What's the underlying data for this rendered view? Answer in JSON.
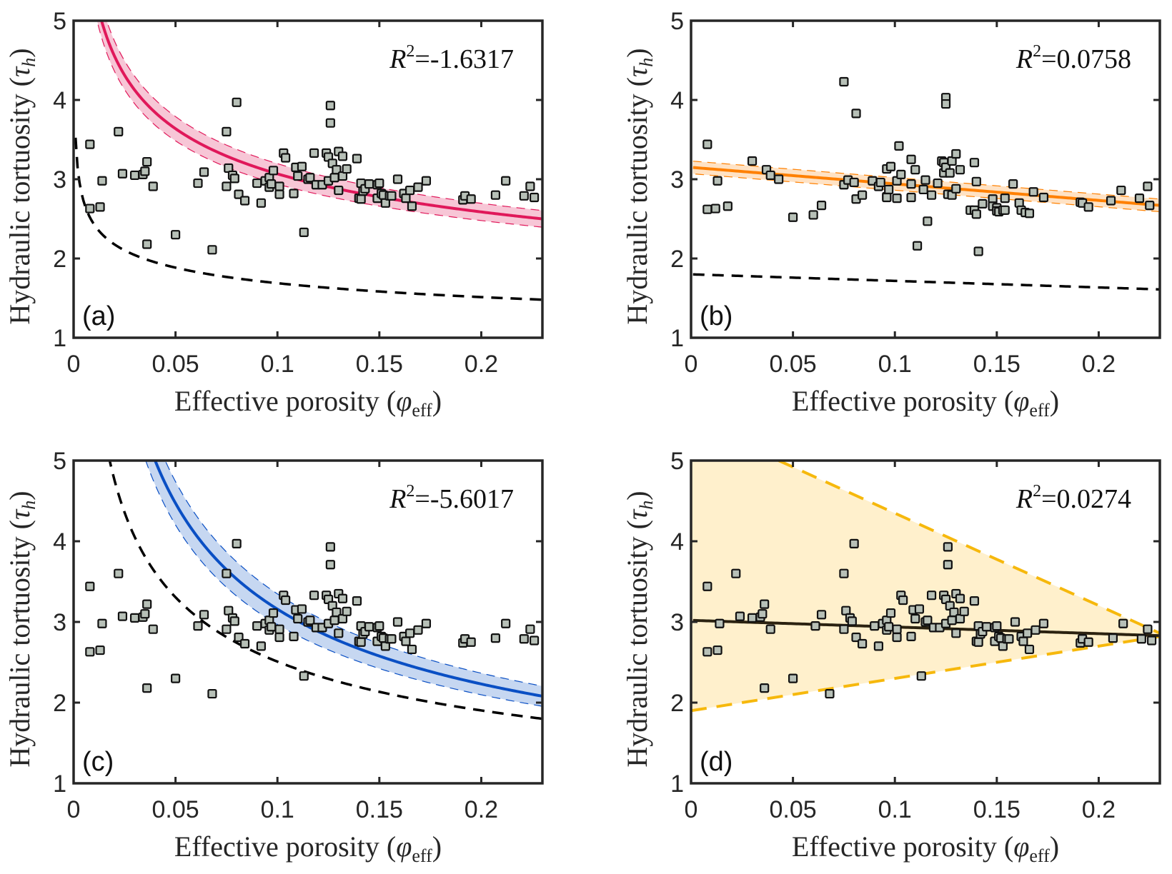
{
  "chart_data": [
    {
      "type": "scatter",
      "panel_tag": "(a)",
      "title": "",
      "annotation": "R²=-1.6317",
      "annotation_parts": {
        "symbol": "R",
        "sup": "2",
        "value": "=-1.6317"
      },
      "xlabel": "Effective porosity (φ_eff)",
      "xlabel_parts": {
        "main": "Effective porosity",
        "symbol": "φ",
        "sub": "eff"
      },
      "ylabel": "Hydraulic tortuosity (τ_h)",
      "ylabel_parts": {
        "main": "Hydraulic tortuosity",
        "symbol": "τ",
        "sub": "h"
      },
      "xlim": [
        0,
        0.23
      ],
      "ylim": [
        1,
        5
      ],
      "xticks": [
        0,
        0.05,
        0.1,
        0.15,
        0.2
      ],
      "xtick_labels": [
        "0",
        "0.05",
        "0.1",
        "0.15",
        "0.2"
      ],
      "yticks": [
        1,
        2,
        3,
        4,
        5
      ],
      "ytick_labels": [
        "1",
        "2",
        "3",
        "4",
        "5"
      ],
      "grid": false,
      "points_ref": "dataset_acd",
      "fit": {
        "kind": "power",
        "x0": 0.0137,
        "y0": 5,
        "x1": 0.23,
        "y1": 2.5,
        "color": "#e0185a",
        "band": 0.07,
        "band_color": "#f7c6d6"
      },
      "reference": {
        "kind": "power",
        "x0": 0.001,
        "y0": 3.5,
        "x1": 0.23,
        "y1": 1.48,
        "color": "#000000",
        "dashed": true
      }
    },
    {
      "type": "scatter",
      "panel_tag": "(b)",
      "annotation": "R²=0.0758",
      "annotation_parts": {
        "symbol": "R",
        "sup": "2",
        "value": "=0.0758"
      },
      "xlabel_parts": {
        "main": "Effective porosity",
        "symbol": "φ",
        "sub": "eff"
      },
      "ylabel_parts": {
        "main": "Hydraulic tortuosity",
        "symbol": "τ",
        "sub": "h"
      },
      "xlim": [
        0,
        0.23
      ],
      "ylim": [
        1,
        5
      ],
      "xticks": [
        0,
        0.05,
        0.1,
        0.15,
        0.2
      ],
      "xtick_labels": [
        "0",
        "0.05",
        "0.1",
        "0.15",
        "0.2"
      ],
      "yticks": [
        1,
        2,
        3,
        4,
        5
      ],
      "ytick_labels": [
        "1",
        "2",
        "3",
        "4",
        "5"
      ],
      "grid": false,
      "points_ref": "dataset_b",
      "fit": {
        "kind": "linear",
        "x0": 0,
        "y0": 3.15,
        "x1": 0.23,
        "y1": 2.67,
        "color": "#ff8000",
        "band": 0.08,
        "band_color": "#ffe2c4"
      },
      "reference": {
        "kind": "linear",
        "x0": 0,
        "y0": 1.8,
        "x1": 0.23,
        "y1": 1.61,
        "color": "#000000",
        "dashed": true
      }
    },
    {
      "type": "scatter",
      "panel_tag": "(c)",
      "annotation": "R²=-5.6017",
      "annotation_parts": {
        "symbol": "R",
        "sup": "2",
        "value": "=-5.6017"
      },
      "xlabel_parts": {
        "main": "Effective porosity",
        "symbol": "φ",
        "sub": "eff"
      },
      "ylabel_parts": {
        "main": "Hydraulic tortuosity",
        "symbol": "τ",
        "sub": "h"
      },
      "xlim": [
        0,
        0.23
      ],
      "ylim": [
        1,
        5
      ],
      "xticks": [
        0,
        0.05,
        0.1,
        0.15,
        0.2
      ],
      "xtick_labels": [
        "0",
        "0.05",
        "0.1",
        "0.15",
        "0.2"
      ],
      "yticks": [
        1,
        2,
        3,
        4,
        5
      ],
      "ytick_labels": [
        "1",
        "2",
        "3",
        "4",
        "5"
      ],
      "grid": false,
      "points_ref": "dataset_acd",
      "fit": {
        "kind": "power",
        "x0": 0.04,
        "y0": 5,
        "x1": 0.23,
        "y1": 2.08,
        "color": "#0a4fc4",
        "band": 0.1,
        "band_color": "#c6d7f1"
      },
      "reference": {
        "kind": "power",
        "x0": 0.0177,
        "y0": 5,
        "x1": 0.23,
        "y1": 1.8,
        "color": "#000000",
        "dashed": true
      }
    },
    {
      "type": "scatter",
      "panel_tag": "(d)",
      "annotation": "R²=0.0274",
      "annotation_parts": {
        "symbol": "R",
        "sup": "2",
        "value": "=0.0274"
      },
      "xlabel_parts": {
        "main": "Effective porosity",
        "symbol": "φ",
        "sub": "eff"
      },
      "ylabel_parts": {
        "main": "Hydraulic tortuosity",
        "symbol": "τ",
        "sub": "h"
      },
      "xlim": [
        0,
        0.23
      ],
      "ylim": [
        1,
        5
      ],
      "xticks": [
        0,
        0.05,
        0.1,
        0.15,
        0.2
      ],
      "xtick_labels": [
        "0",
        "0.05",
        "0.1",
        "0.15",
        "0.2"
      ],
      "yticks": [
        1,
        2,
        3,
        4,
        5
      ],
      "ytick_labels": [
        "1",
        "2",
        "3",
        "4",
        "5"
      ],
      "grid": false,
      "points_ref": "dataset_acd",
      "fit": {
        "kind": "linear",
        "x0": 0,
        "y0": 3.02,
        "x1": 0.23,
        "y1": 2.83,
        "color": "#2b2210",
        "band": 0,
        "band_color": null
      },
      "envelope": {
        "upper": [
          [
            0,
            5
          ],
          [
            0.043,
            5
          ],
          [
            0.23,
            2.86
          ]
        ],
        "upper_dashed_from": [
          0.043,
          5
        ],
        "lower": [
          [
            0,
            1.9
          ],
          [
            0.23,
            2.82
          ]
        ],
        "line_color": "#f6b80c",
        "fill_color": "#fff0cc"
      }
    }
  ],
  "datasets": {
    "dataset_acd": [
      [
        0.008,
        3.44
      ],
      [
        0.008,
        2.63
      ],
      [
        0.013,
        2.65
      ],
      [
        0.014,
        2.98
      ],
      [
        0.022,
        3.6
      ],
      [
        0.024,
        3.07
      ],
      [
        0.03,
        3.05
      ],
      [
        0.034,
        3.06
      ],
      [
        0.035,
        3.1
      ],
      [
        0.036,
        3.22
      ],
      [
        0.036,
        2.18
      ],
      [
        0.039,
        2.91
      ],
      [
        0.05,
        2.3
      ],
      [
        0.061,
        2.95
      ],
      [
        0.064,
        3.09
      ],
      [
        0.068,
        2.11
      ],
      [
        0.075,
        2.91
      ],
      [
        0.075,
        3.6
      ],
      [
        0.076,
        3.14
      ],
      [
        0.078,
        3.05
      ],
      [
        0.079,
        3.01
      ],
      [
        0.08,
        3.97
      ],
      [
        0.081,
        2.81
      ],
      [
        0.084,
        2.73
      ],
      [
        0.09,
        2.95
      ],
      [
        0.092,
        2.7
      ],
      [
        0.094,
        2.98
      ],
      [
        0.096,
        3.02
      ],
      [
        0.096,
        2.9
      ],
      [
        0.097,
        2.94
      ],
      [
        0.098,
        3.11
      ],
      [
        0.101,
        2.81
      ],
      [
        0.101,
        2.91
      ],
      [
        0.103,
        3.33
      ],
      [
        0.104,
        3.27
      ],
      [
        0.108,
        2.82
      ],
      [
        0.109,
        3.15
      ],
      [
        0.11,
        3.04
      ],
      [
        0.112,
        3.16
      ],
      [
        0.113,
        2.33
      ],
      [
        0.115,
        3.0
      ],
      [
        0.116,
        3.02
      ],
      [
        0.118,
        3.33
      ],
      [
        0.119,
        2.93
      ],
      [
        0.122,
        2.93
      ],
      [
        0.124,
        3.33
      ],
      [
        0.125,
        2.98
      ],
      [
        0.125,
        3.28
      ],
      [
        0.126,
        3.93
      ],
      [
        0.126,
        3.71
      ],
      [
        0.127,
        3.2
      ],
      [
        0.128,
        3.02
      ],
      [
        0.129,
        3.12
      ],
      [
        0.13,
        3.35
      ],
      [
        0.13,
        2.86
      ],
      [
        0.132,
        3.04
      ],
      [
        0.132,
        3.29
      ],
      [
        0.134,
        3.13
      ],
      [
        0.139,
        3.26
      ],
      [
        0.14,
        2.76
      ],
      [
        0.141,
        2.95
      ],
      [
        0.141,
        2.75
      ],
      [
        0.142,
        2.85
      ],
      [
        0.143,
        2.88
      ],
      [
        0.145,
        2.94
      ],
      [
        0.149,
        2.76
      ],
      [
        0.149,
        2.93
      ],
      [
        0.15,
        2.95
      ],
      [
        0.151,
        2.82
      ],
      [
        0.152,
        2.8
      ],
      [
        0.153,
        2.7
      ],
      [
        0.155,
        2.79
      ],
      [
        0.156,
        2.79
      ],
      [
        0.159,
        3.0
      ],
      [
        0.162,
        2.82
      ],
      [
        0.163,
        2.76
      ],
      [
        0.165,
        2.86
      ],
      [
        0.166,
        2.66
      ],
      [
        0.169,
        2.9
      ],
      [
        0.173,
        2.98
      ],
      [
        0.191,
        2.74
      ],
      [
        0.192,
        2.79
      ],
      [
        0.195,
        2.75
      ],
      [
        0.207,
        2.8
      ],
      [
        0.212,
        2.98
      ],
      [
        0.221,
        2.79
      ],
      [
        0.224,
        2.91
      ],
      [
        0.226,
        2.77
      ]
    ],
    "dataset_b": [
      [
        0.008,
        3.44
      ],
      [
        0.008,
        2.62
      ],
      [
        0.012,
        2.63
      ],
      [
        0.013,
        2.98
      ],
      [
        0.018,
        2.66
      ],
      [
        0.03,
        3.23
      ],
      [
        0.037,
        3.12
      ],
      [
        0.039,
        3.05
      ],
      [
        0.043,
        3.0
      ],
      [
        0.05,
        2.52
      ],
      [
        0.06,
        2.55
      ],
      [
        0.064,
        2.67
      ],
      [
        0.075,
        4.23
      ],
      [
        0.075,
        2.93
      ],
      [
        0.077,
        2.99
      ],
      [
        0.08,
        2.96
      ],
      [
        0.081,
        3.83
      ],
      [
        0.081,
        2.75
      ],
      [
        0.084,
        2.8
      ],
      [
        0.089,
        2.98
      ],
      [
        0.092,
        2.91
      ],
      [
        0.093,
        2.96
      ],
      [
        0.096,
        3.13
      ],
      [
        0.098,
        3.16
      ],
      [
        0.096,
        2.78
      ],
      [
        0.097,
        2.87
      ],
      [
        0.096,
        2.77
      ],
      [
        0.101,
        2.76
      ],
      [
        0.101,
        2.98
      ],
      [
        0.102,
        3.42
      ],
      [
        0.103,
        3.06
      ],
      [
        0.108,
        2.77
      ],
      [
        0.108,
        3.25
      ],
      [
        0.108,
        2.94
      ],
      [
        0.11,
        3.12
      ],
      [
        0.111,
        2.16
      ],
      [
        0.114,
        2.87
      ],
      [
        0.115,
        2.99
      ],
      [
        0.116,
        2.47
      ],
      [
        0.118,
        2.8
      ],
      [
        0.121,
        2.95
      ],
      [
        0.123,
        3.23
      ],
      [
        0.124,
        3.21
      ],
      [
        0.124,
        3.08
      ],
      [
        0.125,
        3.15
      ],
      [
        0.125,
        4.03
      ],
      [
        0.125,
        3.95
      ],
      [
        0.126,
        2.81
      ],
      [
        0.127,
        3.08
      ],
      [
        0.128,
        2.8
      ],
      [
        0.128,
        3.23
      ],
      [
        0.13,
        3.32
      ],
      [
        0.13,
        2.88
      ],
      [
        0.132,
        3.12
      ],
      [
        0.137,
        2.61
      ],
      [
        0.139,
        3.21
      ],
      [
        0.139,
        2.61
      ],
      [
        0.14,
        2.97
      ],
      [
        0.14,
        2.56
      ],
      [
        0.141,
        2.09
      ],
      [
        0.143,
        2.69
      ],
      [
        0.148,
        2.75
      ],
      [
        0.148,
        2.66
      ],
      [
        0.15,
        2.64
      ],
      [
        0.15,
        2.6
      ],
      [
        0.151,
        2.59
      ],
      [
        0.153,
        2.61
      ],
      [
        0.154,
        2.61
      ],
      [
        0.154,
        2.76
      ],
      [
        0.158,
        2.94
      ],
      [
        0.161,
        2.7
      ],
      [
        0.162,
        2.61
      ],
      [
        0.164,
        2.58
      ],
      [
        0.166,
        2.57
      ],
      [
        0.168,
        2.84
      ],
      [
        0.173,
        2.77
      ],
      [
        0.191,
        2.71
      ],
      [
        0.192,
        2.7
      ],
      [
        0.195,
        2.65
      ],
      [
        0.206,
        2.73
      ],
      [
        0.211,
        2.86
      ],
      [
        0.22,
        2.76
      ],
      [
        0.224,
        2.91
      ],
      [
        0.225,
        2.67
      ]
    ]
  },
  "colors": {
    "marker_fill": "#b7c0b7",
    "marker_edge": "#111111",
    "axis": "#262626"
  }
}
